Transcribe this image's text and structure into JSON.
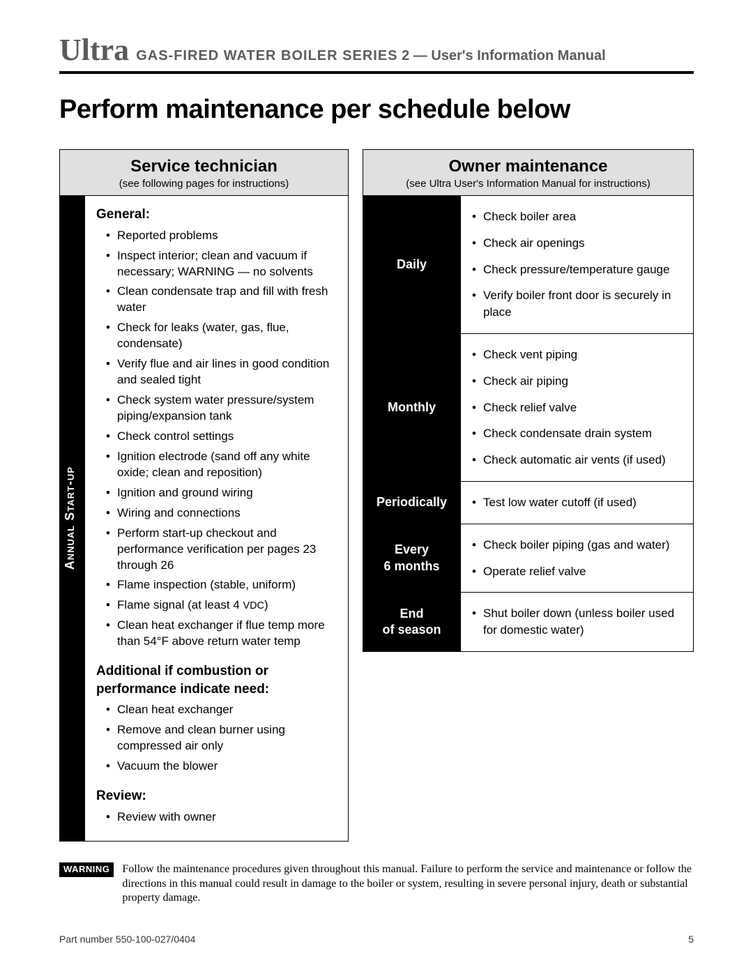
{
  "header": {
    "brand": "Ultra",
    "caps": "GAS-FIRED WATER BOILER SERIES",
    "series": "2",
    "dash": "—",
    "manual": "User's Information Manual"
  },
  "main_title": "Perform maintenance per schedule below",
  "left": {
    "title": "Service technician",
    "subtitle": "(see following pages for instructions)",
    "side_label": "Annual Start-up",
    "sections": [
      {
        "heading": "General:",
        "items": [
          "Reported problems",
          "Inspect interior; clean and vacuum if necessary; WARNING — no solvents",
          "Clean condensate trap and fill with fresh water",
          "Check for leaks (water, gas, flue, condensate)",
          "Verify flue and air lines in good condition and sealed tight",
          "Check system water pressure/system piping/expansion tank",
          "Check control settings",
          "Ignition electrode (sand off any white oxide; clean and reposition)",
          "Ignition and ground wiring",
          "Wiring and connections",
          "Perform start-up checkout and performance verification per pages 23 through 26",
          "Flame inspection (stable, uniform)",
          "Flame signal (at least 4 VDC)",
          "Clean heat exchanger if flue temp more than 54°F above return water temp"
        ]
      },
      {
        "heading": "Additional if combustion or performance indicate need:",
        "items": [
          "Clean heat exchanger",
          "Remove and clean burner using compressed air only",
          "Vacuum the blower"
        ]
      },
      {
        "heading": "Review:",
        "items": [
          "Review with owner"
        ]
      }
    ]
  },
  "right": {
    "title": "Owner maintenance",
    "subtitle": "(see Ultra User's Information Manual for instructions)",
    "rows": [
      {
        "freq": "Daily",
        "items": [
          "Check boiler area",
          "Check air openings",
          "Check pressure/temperature gauge",
          "Verify boiler front door is securely in place"
        ]
      },
      {
        "freq": "Monthly",
        "items": [
          "Check vent piping",
          "Check air piping",
          "Check relief valve",
          "Check condensate drain system",
          "Check automatic air vents (if used)"
        ]
      },
      {
        "freq": "Periodically",
        "items": [
          "Test low water cutoff (if used)"
        ]
      },
      {
        "freq": "Every 6 months",
        "items": [
          "Check boiler piping (gas and water)",
          "Operate relief valve"
        ]
      },
      {
        "freq": "End of season",
        "items": [
          "Shut boiler down (unless boiler used for domestic water)"
        ]
      }
    ]
  },
  "warning": {
    "badge": "WARNING",
    "text": "Follow the maintenance procedures given throughout this manual. Failure to perform the service and maintenance or follow the directions in this manual could result in damage to the boiler or system, resulting in severe personal injury, death or substantial property damage."
  },
  "footer": {
    "part": "Part number 550-100-027/0404",
    "page": "5"
  },
  "colors": {
    "header_gray": "#5b5b5b",
    "head_bg": "#e0e0e0",
    "black": "#000000",
    "white": "#ffffff"
  }
}
